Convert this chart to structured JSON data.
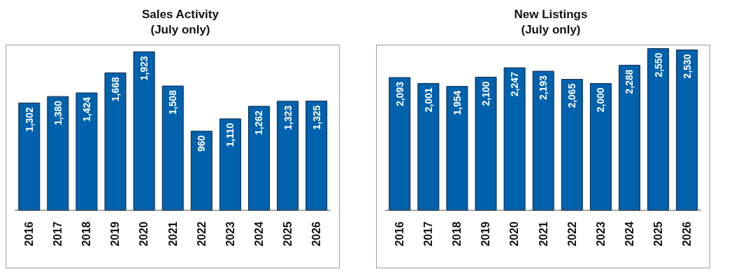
{
  "chart_data": [
    {
      "type": "bar",
      "title": "Sales Activity",
      "subtitle": "(July only)",
      "categories": [
        "2016",
        "2017",
        "2018",
        "2019",
        "2020",
        "2021",
        "2022",
        "2023",
        "2024",
        "2025",
        "2026"
      ],
      "series": [
        {
          "color": "#0061ad",
          "values": [
            1302,
            1380,
            1424,
            1668,
            1923,
            1508,
            960,
            1110,
            1262,
            1323,
            1325
          ],
          "value_labels": [
            "1,302",
            "1,380",
            "1,424",
            "1,668",
            "1,923",
            "1,508",
            "960",
            "1,110",
            "1,262",
            "1,323",
            "1,325"
          ]
        }
      ],
      "tick_labels": "x",
      "grid": false
    },
    {
      "type": "bar",
      "title": "New Listings",
      "subtitle": "(July only)",
      "categories": [
        "2016",
        "2017",
        "2018",
        "2019",
        "2020",
        "2021",
        "2022",
        "2023",
        "2024",
        "2025",
        "2026"
      ],
      "series": [
        {
          "color": "#0061ad",
          "values": [
            2093,
            2001,
            1954,
            2100,
            2247,
            2193,
            2065,
            2000,
            2288,
            2550,
            2530
          ],
          "value_labels": [
            "2,093",
            "2,001",
            "1,954",
            "2,100",
            "2,247",
            "2,193",
            "2,065",
            "2,000",
            "2,288",
            "2,550",
            "2,530"
          ]
        }
      ],
      "tick_labels": "x",
      "grid": false
    }
  ]
}
